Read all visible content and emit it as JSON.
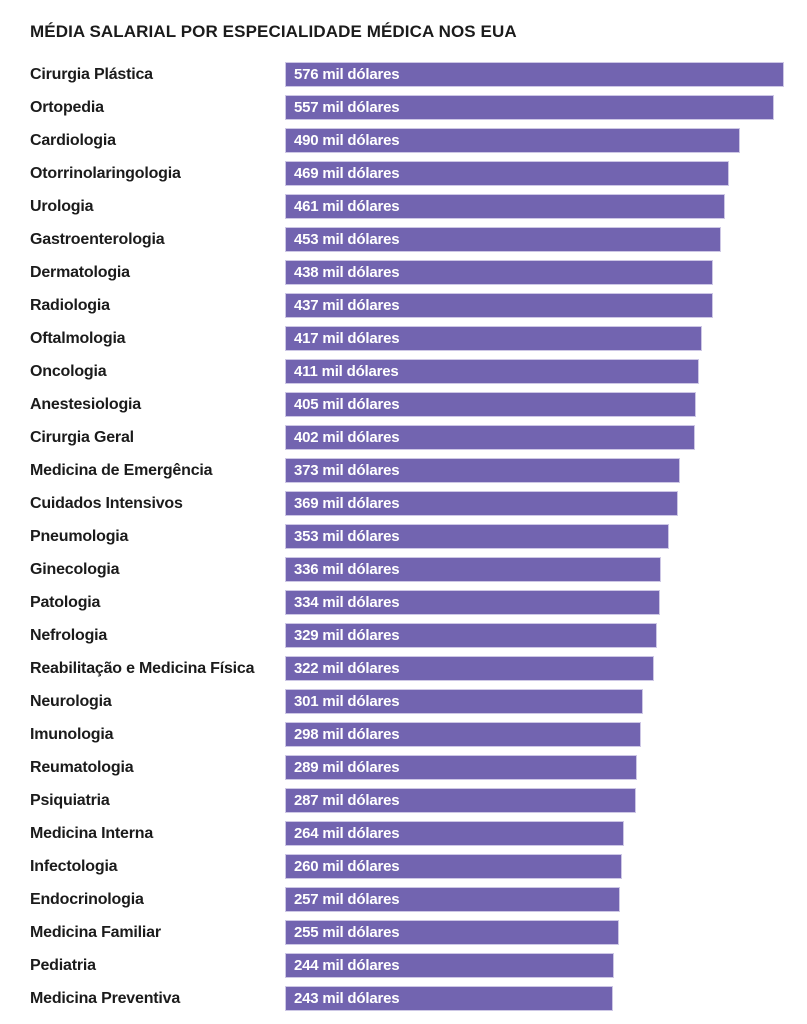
{
  "colors": {
    "bar": "#7264b0",
    "bar_border": "#cdc7e5",
    "label_text": "#1b1b1b",
    "value_text": "#ffffff",
    "background": "#ffffff"
  },
  "chart_data": {
    "type": "bar",
    "orientation": "horizontal",
    "title": "MÉDIA SALARIAL POR ESPECIALIDADE MÉDICA NOS EUA",
    "unit": "mil dólares",
    "categories": [
      "Cirurgia Plástica",
      "Ortopedia",
      "Cardiologia",
      "Otorrinolaringologia",
      "Urologia",
      "Gastroenterologia",
      "Dermatologia",
      "Radiologia",
      "Oftalmologia",
      "Oncologia",
      "Anestesiologia",
      "Cirurgia Geral",
      "Medicina de Emergência",
      "Cuidados Intensivos",
      "Pneumologia",
      "Ginecologia",
      "Patologia",
      "Nefrologia",
      "Reabilitação e Medicina Física",
      "Neurologia",
      "Imunologia",
      "Reumatologia",
      "Psiquiatria",
      "Medicina Interna",
      "Infectologia",
      "Endocrinologia",
      "Medicina Familiar",
      "Pediatria",
      "Medicina Preventiva"
    ],
    "values": [
      576,
      557,
      490,
      469,
      461,
      453,
      438,
      437,
      417,
      411,
      405,
      402,
      373,
      369,
      353,
      336,
      334,
      329,
      322,
      301,
      298,
      289,
      287,
      264,
      260,
      257,
      255,
      244,
      243
    ],
    "value_label_format": "{value} mil dólares",
    "bar_length_value_range": [
      243,
      576
    ],
    "baseline_note": "bar lengths are not zero-based (truncated scale)",
    "grid": false,
    "legend": false
  }
}
